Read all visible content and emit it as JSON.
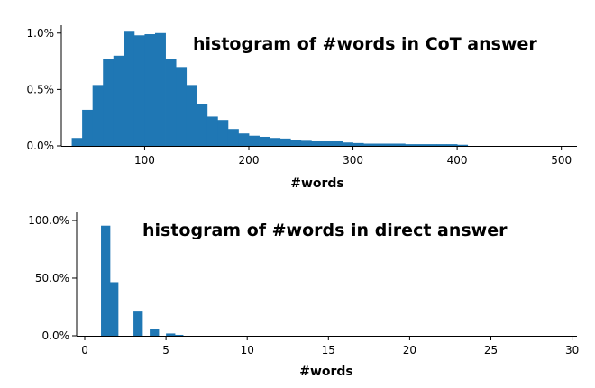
{
  "chart_data": [
    {
      "type": "bar",
      "title": "histogram of #words in CoT answer",
      "xlabel": "#words",
      "ylabel": "",
      "xlim": [
        20,
        515
      ],
      "ylim": [
        0,
        1.07
      ],
      "grid": false,
      "legend": "none",
      "bar_color": "#1f77b4",
      "bin_width": 10,
      "x_ticks": [
        100,
        200,
        300,
        400,
        500
      ],
      "x_tick_labels": [
        "100",
        "200",
        "300",
        "400",
        "500"
      ],
      "y_ticks": [
        0.0,
        0.5,
        1.0
      ],
      "y_tick_labels": [
        "0.0%",
        "0.5%",
        "1.0%"
      ],
      "bin_starts": [
        30,
        40,
        50,
        60,
        70,
        80,
        90,
        100,
        110,
        120,
        130,
        140,
        150,
        160,
        170,
        180,
        190,
        200,
        210,
        220,
        230,
        240,
        250,
        260,
        270,
        280,
        290,
        300,
        310,
        320,
        330,
        340,
        350,
        360,
        370,
        380,
        390,
        400
      ],
      "values": [
        0.07,
        0.32,
        0.54,
        0.77,
        0.8,
        1.02,
        0.98,
        0.99,
        1.0,
        0.77,
        0.7,
        0.54,
        0.37,
        0.26,
        0.23,
        0.15,
        0.11,
        0.09,
        0.08,
        0.07,
        0.065,
        0.055,
        0.045,
        0.04,
        0.04,
        0.04,
        0.03,
        0.025,
        0.02,
        0.02,
        0.02,
        0.02,
        0.015,
        0.015,
        0.015,
        0.015,
        0.015,
        0.01
      ]
    },
    {
      "type": "bar",
      "title": "histogram of #words in direct answer",
      "xlabel": "#words",
      "ylabel": "",
      "xlim": [
        -0.5,
        30.3
      ],
      "ylim": [
        0,
        107
      ],
      "grid": false,
      "legend": "none",
      "bar_color": "#1f77b4",
      "bin_width": 0.55,
      "x_ticks": [
        0,
        5,
        10,
        15,
        20,
        25,
        30
      ],
      "x_tick_labels": [
        "0",
        "5",
        "10",
        "15",
        "20",
        "25",
        "30"
      ],
      "y_ticks": [
        0,
        50,
        100
      ],
      "y_tick_labels": [
        "0.0%",
        "50.0%",
        "100.0%"
      ],
      "bin_starts": [
        1.0,
        1.5,
        3.0,
        4.0,
        5.0,
        5.5
      ],
      "values": [
        95.5,
        46.5,
        21.0,
        6.0,
        2.0,
        0.8
      ]
    }
  ]
}
